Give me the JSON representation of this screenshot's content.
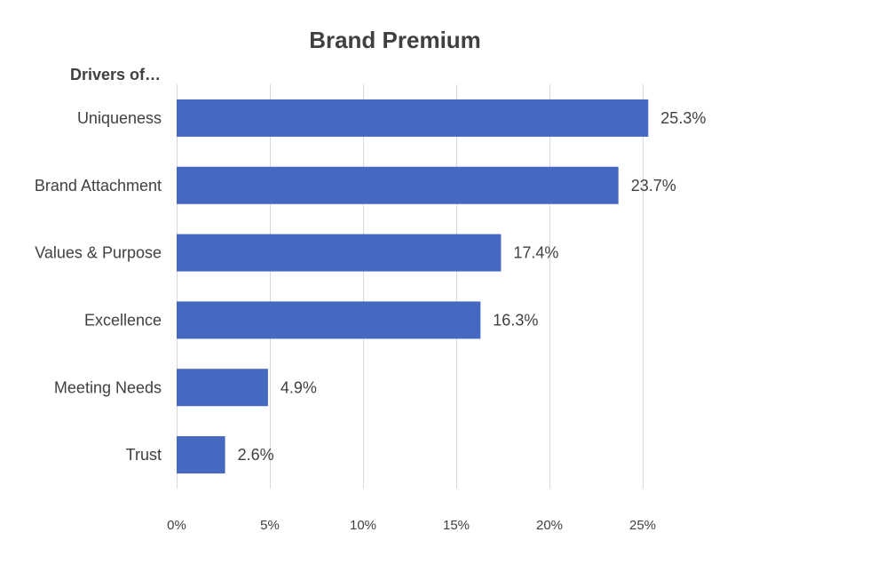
{
  "chart_data": {
    "type": "bar",
    "orientation": "horizontal",
    "title": "Brand Premium",
    "ylabel": "Drivers of…",
    "xlabel": "",
    "categories": [
      "Uniqueness",
      "Brand Attachment",
      "Values & Purpose",
      "Excellence",
      "Meeting Needs",
      "Trust"
    ],
    "values": [
      25.3,
      23.7,
      17.4,
      16.3,
      4.9,
      2.6
    ],
    "value_labels": [
      "25.3%",
      "23.7%",
      "17.4%",
      "16.3%",
      "4.9%",
      "2.6%"
    ],
    "xlim": [
      0,
      25
    ],
    "x_ticks": [
      0,
      5,
      10,
      15,
      20,
      25
    ],
    "x_tick_labels": [
      "0%",
      "5%",
      "10%",
      "15%",
      "20%",
      "25%"
    ],
    "grid": "vertical",
    "legend": "none",
    "bar_color": "#4569C0"
  }
}
